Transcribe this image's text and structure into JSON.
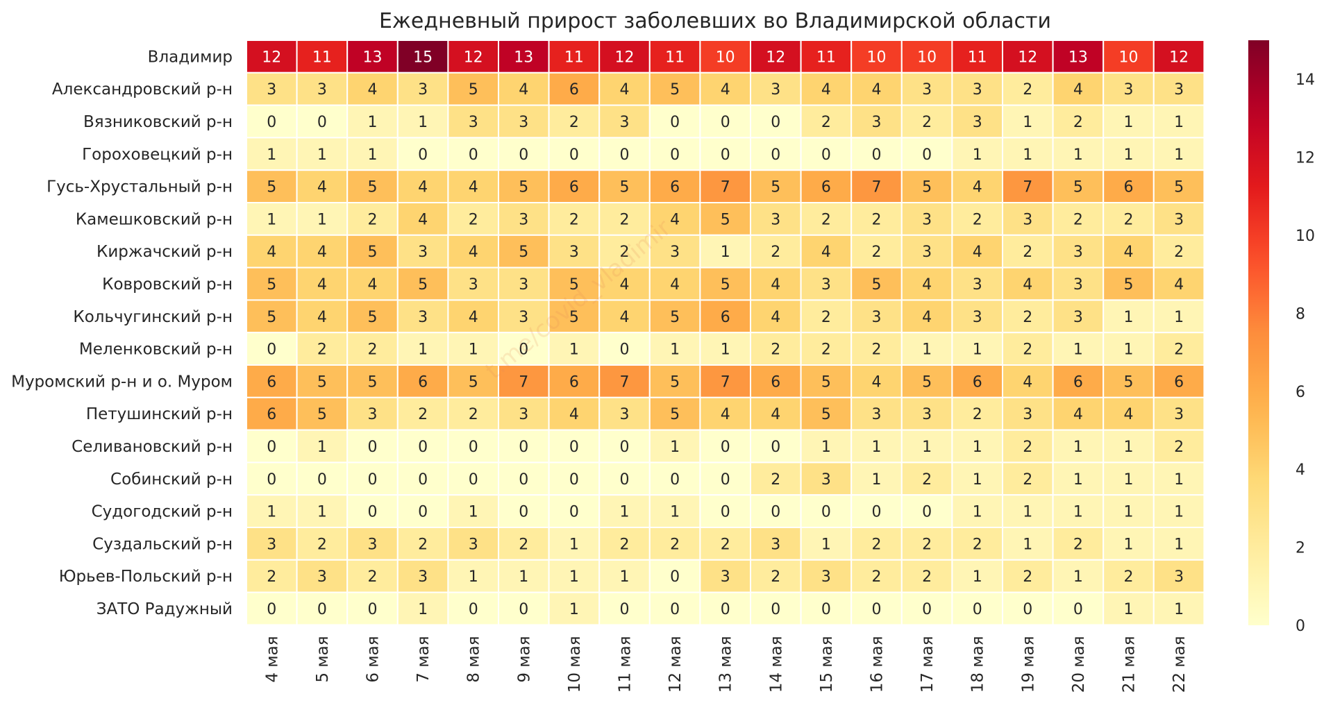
{
  "chart_data": {
    "type": "heatmap",
    "title": "Ежедневный прирост заболевших во Владимирской области",
    "watermark": "t.me/covid_vladimir",
    "columns": [
      "4 мая",
      "5 мая",
      "6 мая",
      "7 мая",
      "8 мая",
      "9 мая",
      "10 мая",
      "11 мая",
      "12 мая",
      "13 мая",
      "14 мая",
      "15 мая",
      "16 мая",
      "17 мая",
      "18 мая",
      "19 мая",
      "20 мая",
      "21 мая",
      "22 мая"
    ],
    "rows": [
      "Владимир",
      "Александровский р-н",
      "Вязниковский р-н",
      "Гороховецкий р-н",
      "Гусь-Хрустальный р-н",
      "Камешковский р-н",
      "Киржачский р-н",
      "Ковровский р-н",
      "Кольчугинский р-н",
      "Меленковский р-н",
      "Муромский р-н и о. Муром",
      "Петушинский р-н",
      "Селивановский р-н",
      "Собинский р-н",
      "Судогодский р-н",
      "Суздальский р-н",
      "Юрьев-Польский р-н",
      "ЗАТО Радужный"
    ],
    "values": [
      [
        12,
        11,
        13,
        15,
        12,
        13,
        11,
        12,
        11,
        10,
        12,
        11,
        10,
        10,
        11,
        12,
        13,
        10,
        12
      ],
      [
        3,
        3,
        4,
        3,
        5,
        4,
        6,
        4,
        5,
        4,
        3,
        4,
        4,
        3,
        3,
        2,
        4,
        3,
        3
      ],
      [
        0,
        0,
        1,
        1,
        3,
        3,
        2,
        3,
        0,
        0,
        0,
        2,
        3,
        2,
        3,
        1,
        2,
        1,
        1
      ],
      [
        1,
        1,
        1,
        0,
        0,
        0,
        0,
        0,
        0,
        0,
        0,
        0,
        0,
        0,
        1,
        1,
        1,
        1,
        1
      ],
      [
        5,
        4,
        5,
        4,
        4,
        5,
        6,
        5,
        6,
        7,
        5,
        6,
        7,
        5,
        4,
        7,
        5,
        6,
        5
      ],
      [
        1,
        1,
        2,
        4,
        2,
        3,
        2,
        2,
        4,
        5,
        3,
        2,
        2,
        3,
        2,
        3,
        2,
        2,
        3
      ],
      [
        4,
        4,
        5,
        3,
        4,
        5,
        3,
        2,
        3,
        1,
        2,
        4,
        2,
        3,
        4,
        2,
        3,
        4,
        2
      ],
      [
        5,
        4,
        4,
        5,
        3,
        3,
        5,
        4,
        4,
        5,
        4,
        3,
        5,
        4,
        3,
        4,
        3,
        5,
        4
      ],
      [
        5,
        4,
        5,
        3,
        4,
        3,
        5,
        4,
        5,
        6,
        4,
        2,
        3,
        4,
        3,
        2,
        3,
        1,
        1
      ],
      [
        0,
        2,
        2,
        1,
        1,
        0,
        1,
        0,
        1,
        1,
        2,
        2,
        2,
        1,
        1,
        2,
        1,
        1,
        2
      ],
      [
        6,
        5,
        5,
        6,
        5,
        7,
        6,
        7,
        5,
        7,
        6,
        5,
        4,
        5,
        6,
        4,
        6,
        5,
        6
      ],
      [
        6,
        5,
        3,
        2,
        2,
        3,
        4,
        3,
        5,
        4,
        4,
        5,
        3,
        3,
        2,
        3,
        4,
        4,
        3
      ],
      [
        0,
        1,
        0,
        0,
        0,
        0,
        0,
        0,
        1,
        0,
        0,
        1,
        1,
        1,
        1,
        2,
        1,
        1,
        2
      ],
      [
        0,
        0,
        0,
        0,
        0,
        0,
        0,
        0,
        0,
        0,
        2,
        3,
        1,
        2,
        1,
        2,
        1,
        1,
        1
      ],
      [
        1,
        1,
        0,
        0,
        1,
        0,
        0,
        1,
        1,
        0,
        0,
        0,
        0,
        0,
        1,
        1,
        1,
        1,
        1
      ],
      [
        3,
        2,
        3,
        2,
        3,
        2,
        1,
        2,
        2,
        2,
        3,
        1,
        2,
        2,
        2,
        1,
        2,
        1,
        1
      ],
      [
        2,
        3,
        2,
        3,
        1,
        1,
        1,
        1,
        0,
        3,
        2,
        3,
        2,
        2,
        1,
        2,
        1,
        2,
        3
      ],
      [
        0,
        0,
        0,
        1,
        0,
        0,
        1,
        0,
        0,
        0,
        0,
        0,
        0,
        0,
        0,
        0,
        0,
        1,
        1
      ]
    ],
    "vmin": 0,
    "vmax": 15,
    "colormap": "YlOrRd",
    "colorbar_ticks": [
      0,
      2,
      4,
      6,
      8,
      10,
      12,
      14
    ],
    "grid_line_color": "#ffffff"
  }
}
